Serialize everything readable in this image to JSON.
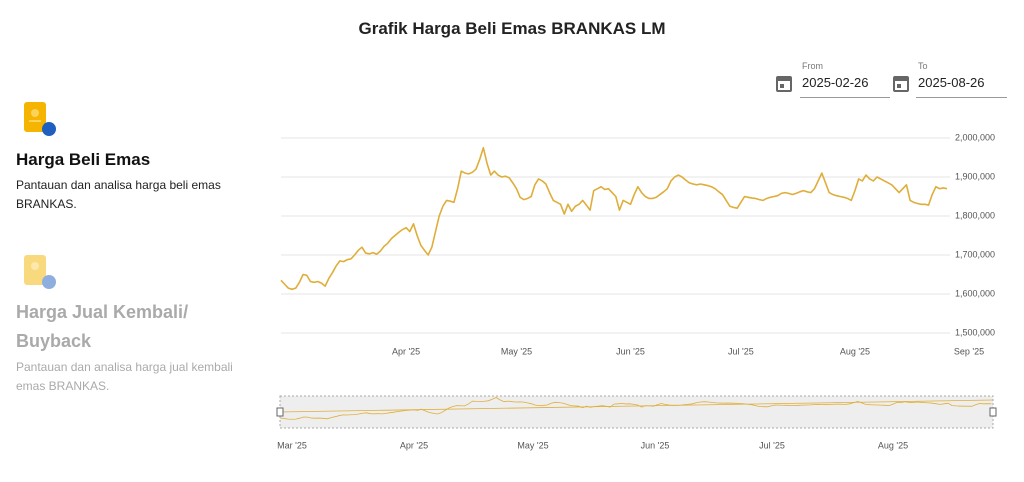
{
  "header": {
    "title": "Grafik Harga Beli Emas BRANKAS LM"
  },
  "sidebar": [
    {
      "title": "Harga Beli Emas",
      "description": "Pantauan dan analisa harga beli emas BRANKAS."
    },
    {
      "title": "Harga Jual Kembali/ Buyback",
      "description": "Pantauan dan analisa harga jual kembali emas BRANKAS."
    }
  ],
  "date_range": {
    "from_label": "From",
    "from_value": "2025-02-26",
    "to_label": "To",
    "to_value": "2025-08-26"
  },
  "navigator": {
    "labels": [
      "Mar '25",
      "Apr '25",
      "May '25",
      "Jun '25",
      "Jul '25",
      "Aug '25"
    ]
  },
  "chart_data": {
    "type": "line",
    "color": "#dfae3a",
    "grid": true,
    "ylim": [
      1500000,
      2000000
    ],
    "yticks": [
      {
        "value": 1500000,
        "label": "1,500,000"
      },
      {
        "value": 1600000,
        "label": "1,600,000"
      },
      {
        "value": 1700000,
        "label": "1,700,000"
      },
      {
        "value": 1800000,
        "label": "1,800,000"
      },
      {
        "value": 1900000,
        "label": "1,900,000"
      },
      {
        "value": 2000000,
        "label": "2,000,000"
      }
    ],
    "categories": [
      null,
      null,
      null,
      null,
      null,
      null,
      null,
      null,
      null,
      null,
      null,
      null,
      null,
      null,
      null,
      null,
      null,
      null,
      null,
      null,
      null,
      null,
      null,
      null,
      null,
      null,
      null,
      null,
      null,
      null,
      null,
      null,
      null,
      null,
      "Apr '25",
      null,
      null,
      null,
      null,
      null,
      null,
      null,
      null,
      null,
      null,
      null,
      null,
      null,
      null,
      null,
      null,
      null,
      null,
      null,
      null,
      null,
      null,
      null,
      null,
      null,
      null,
      null,
      null,
      null,
      "May '25",
      null,
      null,
      null,
      null,
      null,
      null,
      null,
      null,
      null,
      null,
      null,
      null,
      null,
      null,
      null,
      null,
      null,
      null,
      null,
      null,
      null,
      null,
      null,
      null,
      null,
      null,
      null,
      null,
      null,
      null,
      "Jun '25",
      null,
      null,
      null,
      null,
      null,
      null,
      null,
      null,
      null,
      null,
      null,
      null,
      null,
      null,
      null,
      null,
      null,
      null,
      null,
      null,
      null,
      null,
      null,
      null,
      null,
      null,
      null,
      null,
      null,
      "Jul '25",
      null,
      null,
      null,
      null,
      null,
      null,
      null,
      null,
      null,
      null,
      null,
      null,
      null,
      null,
      null,
      null,
      null,
      null,
      null,
      null,
      null,
      null,
      null,
      null,
      null,
      null,
      null,
      null,
      null,
      null,
      "Aug '25",
      null,
      null,
      null,
      null,
      null,
      null,
      null,
      null,
      null,
      null,
      null,
      null,
      null,
      null,
      null,
      null,
      null,
      null,
      null,
      null,
      null,
      null,
      null,
      null,
      null,
      null,
      null,
      null,
      null,
      null,
      "Sep '25"
    ],
    "values": [
      1635000,
      1625000,
      1615000,
      1612000,
      1615000,
      1630000,
      1650000,
      1648000,
      1632000,
      1630000,
      1632000,
      1628000,
      1620000,
      1640000,
      1655000,
      1672000,
      1685000,
      1683000,
      1688000,
      1690000,
      1700000,
      1712000,
      1720000,
      1705000,
      1703000,
      1706000,
      1702000,
      1710000,
      1722000,
      1730000,
      1742000,
      1750000,
      1758000,
      1765000,
      1770000,
      1760000,
      1780000,
      1750000,
      1725000,
      1712000,
      1700000,
      1720000,
      1760000,
      1800000,
      1825000,
      1840000,
      1838000,
      1835000,
      1870000,
      1915000,
      1910000,
      1908000,
      1912000,
      1920000,
      1945000,
      1975000,
      1935000,
      1905000,
      1915000,
      1905000,
      1900000,
      1902000,
      1898000,
      1885000,
      1870000,
      1848000,
      1842000,
      1845000,
      1850000,
      1880000,
      1895000,
      1890000,
      1882000,
      1860000,
      1840000,
      1835000,
      1830000,
      1805000,
      1830000,
      1812000,
      1825000,
      1830000,
      1840000,
      1828000,
      1815000,
      1865000,
      1870000,
      1875000,
      1868000,
      1870000,
      1860000,
      1850000,
      1815000,
      1840000,
      1835000,
      1830000,
      1855000,
      1875000,
      1860000,
      1850000,
      1845000,
      1845000,
      1848000,
      1855000,
      1862000,
      1870000,
      1890000,
      1900000,
      1905000,
      1900000,
      1892000,
      1885000,
      1882000,
      1880000,
      1882000,
      1880000,
      1878000,
      1875000,
      1870000,
      1862000,
      1855000,
      1840000,
      1825000,
      1822000,
      1820000,
      1835000,
      1850000,
      1848000,
      1846000,
      1845000,
      1842000,
      1840000,
      1845000,
      1848000,
      1850000,
      1852000,
      1858000,
      1860000,
      1858000,
      1855000,
      1858000,
      1862000,
      1865000,
      1862000,
      1860000,
      1870000,
      1890000,
      1910000,
      1885000,
      1860000,
      1855000,
      1852000,
      1850000,
      1848000,
      1845000,
      1840000,
      1865000,
      1895000,
      1890000,
      1905000,
      1895000,
      1890000,
      1900000,
      1895000,
      1890000,
      1885000,
      1880000,
      1870000,
      1860000,
      1870000,
      1880000,
      1840000,
      1835000,
      1832000,
      1830000,
      1830000,
      1828000,
      1855000,
      1875000,
      1870000,
      1872000,
      1870000,
      null,
      null,
      null,
      null,
      null,
      null
    ]
  }
}
